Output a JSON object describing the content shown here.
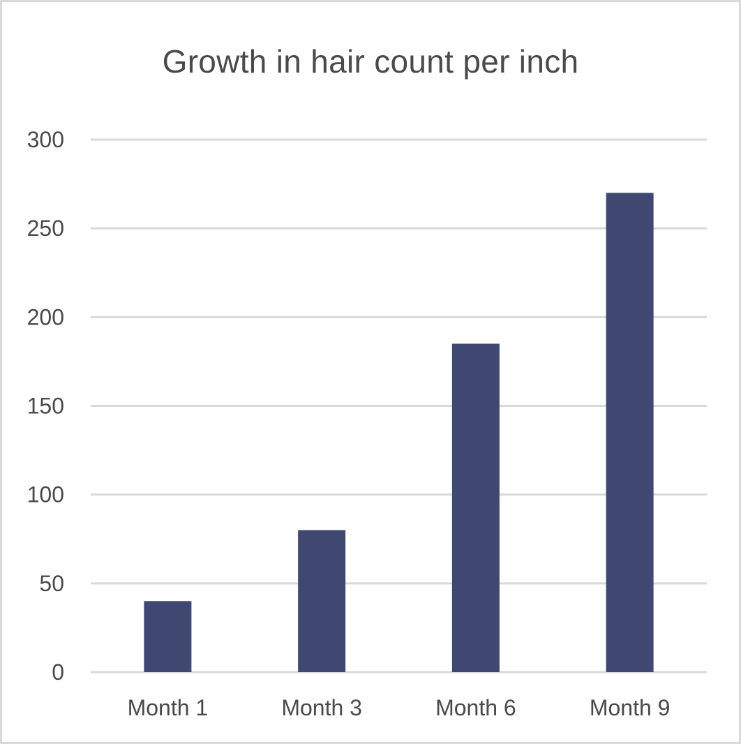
{
  "chart_data": {
    "type": "bar",
    "title": "Growth in hair count per inch",
    "categories": [
      "Month 1",
      "Month 3",
      "Month 6",
      "Month 9"
    ],
    "values": [
      40,
      80,
      185,
      270
    ],
    "xlabel": "",
    "ylabel": "",
    "ylim": [
      0,
      300
    ],
    "yticks": [
      "0",
      "50",
      "100",
      "150",
      "200",
      "250",
      "300"
    ],
    "grid": true,
    "legend": "none",
    "colors": {
      "bar": "#404871",
      "grid": "#d9d9d9",
      "text": "#4a4a4a"
    }
  }
}
